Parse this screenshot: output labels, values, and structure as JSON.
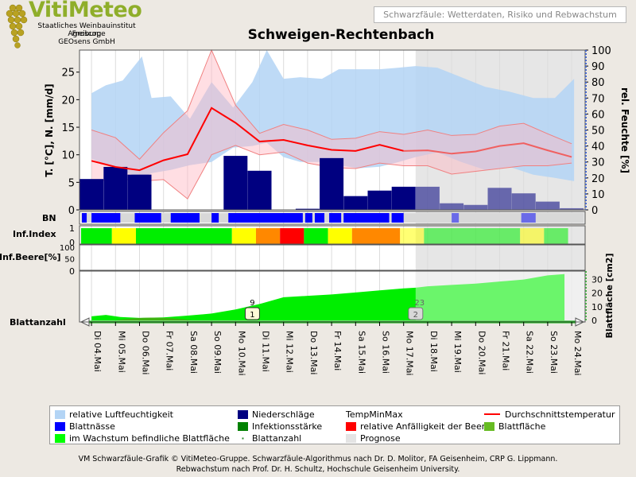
{
  "header": {
    "logo_title": "VitiMeteo",
    "logo_lines": [
      "Staatliches Weinbauinstitut Freiburg",
      "Agroscope",
      "GEOsens GmbH"
    ],
    "subtitle_box": "Schwarzfäule: Wetterdaten, Risiko und Rebwachstum",
    "title": "Schweigen-Rechtenbach"
  },
  "chart_data": {
    "type": "line",
    "categories": [
      "Di 04.Mai",
      "Mi 05.Mai",
      "Do 06.Mai",
      "Fr 07.Mai",
      "Sa 08.Mai",
      "So 09.Mai",
      "Mo 10.Mai",
      "Di 11.Mai",
      "Mi 12.Mai",
      "Do 13.Mai",
      "Fr 14.Mai",
      "Sa 15.Mai",
      "So 16.Mai",
      "Mo 17.Mai",
      "Di 18.Mai",
      "Mi 19.Mai",
      "Do 20.Mai",
      "Fr 21.Mai",
      "Sa 22.Mai",
      "So 23.Mai",
      "Mo 24.Mai"
    ],
    "forecast_start_index": 13.5,
    "main_panel": {
      "ylabel_left": "T. [°C], N. [mm/d]",
      "ylabel_right": "rel. Feuchte [%]",
      "yticks_left": [
        0,
        5,
        10,
        15,
        20,
        25
      ],
      "ylim_left": [
        0,
        29
      ],
      "yticks_right": [
        0,
        10,
        20,
        30,
        40,
        50,
        60,
        70,
        80,
        90,
        100
      ],
      "ylim_right": [
        0,
        100
      ],
      "humidity_x": [
        0,
        0.6,
        1.3,
        2.1,
        2.5,
        3.3,
        4.1,
        5.0,
        5.9,
        6.7,
        7.3,
        8.0,
        8.7,
        9.6,
        10.3,
        11.1,
        12.0,
        12.8,
        13.5,
        14.4,
        15.4,
        16.4,
        17.4,
        18.4,
        19.3,
        20.1
      ],
      "humidity_hi": [
        73,
        78,
        81,
        96,
        70,
        71,
        57,
        80,
        64,
        80,
        100,
        82,
        83,
        82,
        88,
        88,
        88,
        89,
        90,
        89,
        83,
        77,
        74,
        70,
        70,
        82
      ],
      "humidity_lo": [
        32,
        28,
        24,
        20,
        23,
        25,
        28,
        30,
        39,
        40,
        42,
        33,
        30,
        30,
        28,
        26,
        27,
        30,
        33,
        36,
        30,
        25,
        27,
        22,
        20,
        18
      ],
      "temp_avg": [
        8.9,
        7.8,
        7.2,
        9.0,
        10.1,
        18.5,
        15.8,
        12.4,
        12.7,
        11.7,
        10.9,
        10.7,
        11.8,
        10.7,
        10.8,
        10.2,
        10.6,
        11.6,
        12.1,
        10.8,
        9.6
      ],
      "temp_max": [
        14.5,
        13.1,
        9.2,
        14.0,
        18.0,
        29.0,
        19.0,
        13.9,
        15.5,
        14.5,
        12.8,
        13.0,
        14.2,
        13.7,
        14.5,
        13.5,
        13.7,
        15.2,
        15.7,
        13.8,
        12.0
      ],
      "temp_min": [
        4.9,
        5.8,
        5.2,
        5.5,
        2.0,
        10.0,
        11.7,
        10.0,
        10.5,
        8.5,
        7.7,
        7.5,
        8.5,
        8.0,
        8.0,
        6.5,
        7.0,
        7.5,
        8.0,
        8.0,
        8.5
      ],
      "precipitation": [
        5.6,
        7.8,
        6.4,
        0,
        0,
        0,
        9.8,
        7.1,
        0,
        0.2,
        9.4,
        2.5,
        3.5,
        4.2,
        4.2,
        1.2,
        0.9,
        4.0,
        3.0,
        1.5,
        0.3
      ]
    },
    "bn_panel": {
      "label": "BN",
      "wet_segments": [
        [
          0.1,
          0.3
        ],
        [
          0.5,
          1.7
        ],
        [
          2.3,
          3.4
        ],
        [
          3.8,
          5.0
        ],
        [
          5.5,
          5.8
        ],
        [
          6.2,
          9.3
        ],
        [
          9.4,
          9.7
        ],
        [
          9.8,
          10.2
        ],
        [
          10.4,
          10.9
        ],
        [
          11.0,
          12.9
        ],
        [
          13.0,
          13.5
        ],
        [
          15.5,
          15.8
        ],
        [
          18.4,
          19.0
        ]
      ]
    },
    "infection_panel": {
      "label": "Inf.Index",
      "yticks": [
        0,
        1
      ],
      "segments": [
        {
          "from": 0,
          "to": 1.35,
          "color": "#00ee00"
        },
        {
          "from": 1.35,
          "to": 2.35,
          "color": "#ffff00"
        },
        {
          "from": 2.35,
          "to": 6.35,
          "color": "#00ee00"
        },
        {
          "from": 6.35,
          "to": 7.35,
          "color": "#ffff00"
        },
        {
          "from": 7.35,
          "to": 8.35,
          "color": "#ff8800"
        },
        {
          "from": 8.35,
          "to": 9.35,
          "color": "#ff0000"
        },
        {
          "from": 9.35,
          "to": 10.35,
          "color": "#00ee00"
        },
        {
          "from": 10.35,
          "to": 11.35,
          "color": "#ffff00"
        },
        {
          "from": 11.35,
          "to": 13.35,
          "color": "#ff8800"
        },
        {
          "from": 13.35,
          "to": 14.35,
          "color": "#ffff00"
        },
        {
          "from": 14.35,
          "to": 18.35,
          "color": "#00ee00"
        },
        {
          "from": 18.35,
          "to": 19.35,
          "color": "#ffff00"
        },
        {
          "from": 19.35,
          "to": 20.35,
          "color": "#00ee00"
        }
      ]
    },
    "berry_panel": {
      "label": "Inf.Beere[%]",
      "yticks": [
        0,
        50,
        100
      ]
    },
    "leaf_panel": {
      "label_left": "Blattanzahl",
      "label_right": "Blattfläche [cm2]",
      "yticks_right": [
        0,
        10,
        20,
        30
      ],
      "ylim_right": [
        0,
        35
      ],
      "leaf_area_x": [
        0,
        0.6,
        1.2,
        2,
        3,
        4,
        5,
        6,
        7,
        8,
        9,
        10,
        11,
        12,
        13,
        13.5,
        14,
        15,
        16,
        17,
        18,
        19,
        19.7
      ],
      "leaf_area": [
        3,
        4,
        2.5,
        1.8,
        2.2,
        3.5,
        5,
        8,
        12,
        17,
        18,
        19,
        20.5,
        22,
        23.5,
        24,
        25,
        26,
        27,
        28.5,
        30,
        33,
        34
      ],
      "leaf_count_labels": [
        {
          "x": 6.7,
          "count": "9",
          "marker": "1"
        },
        {
          "x": 13.5,
          "count": "23",
          "marker": "2"
        }
      ]
    }
  },
  "legend": {
    "items": [
      {
        "label": "relative Luftfeuchtigkeit",
        "color": "#b3d4f5"
      },
      {
        "label": "Niederschläge",
        "color": "#000080"
      },
      {
        "label": "TempMinMax",
        "color": ""
      },
      {
        "label": "Durchschnittstemperatur",
        "color": "#ff0000"
      },
      {
        "label": "Blattnässe",
        "color": "#0000ff"
      },
      {
        "label": "Infektionsstärke",
        "color": "#008000"
      },
      {
        "label": "relative Anfälligkeit der Beere",
        "color": "#ff0000"
      },
      {
        "label": "Blattfläche",
        "color": "#66bb22"
      },
      {
        "label": "im Wachstum befindliche Blattfläche",
        "color": "#00ff00"
      },
      {
        "label": "Blattanzahl",
        "color": "#2a8a2a"
      },
      {
        "label": "Prognose",
        "color": "#e4e4e4"
      }
    ]
  },
  "footer": {
    "line1": "VM Schwarzfäule-Grafik © VitiMeteo-Gruppe. Schwarzfäule-Algorithmus nach Dr. D. Molitor, FA Geisenheim, CRP G. Lippmann.",
    "line2": "Rebwachstum nach Prof. Dr. H. Schultz, Hochschule Geisenheim University."
  }
}
